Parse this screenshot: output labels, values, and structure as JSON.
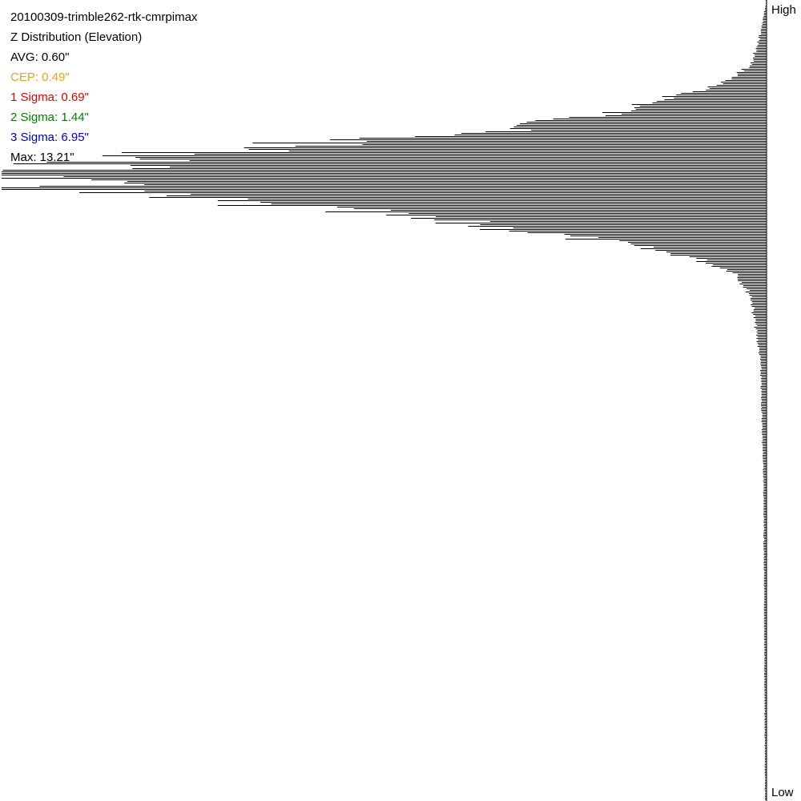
{
  "title": "20100309-trimble262-rtk-cmrpimax",
  "subtitle": "Z Distribution (Elevation)",
  "stats": [
    {
      "label": "AVG: 0.60\"",
      "color": "#000000"
    },
    {
      "label": "CEP: 0.49\"",
      "color": "#f0a020"
    },
    {
      "label": "1 Sigma: 0.69\"",
      "color": "#e00000"
    },
    {
      "label": "2 Sigma: 1.44\"",
      "color": "#008000"
    },
    {
      "label": "3 Sigma: 6.95\"",
      "color": "#0000c0"
    },
    {
      "label": "Max: 13.21\"",
      "color": "#000000"
    }
  ],
  "axis": {
    "top_label": "High",
    "bottom_label": "Low"
  },
  "chart_data": {
    "type": "bar",
    "orientation": "horizontal",
    "x_direction": "leftward from axis",
    "ylabel_top": "High",
    "ylabel_bottom": "Low",
    "bar_color": "#000000",
    "peak_fraction": 1.0,
    "profile": {
      "description_points": [
        {
          "pos": 0.05,
          "rel": 0.01
        },
        {
          "pos": 0.08,
          "rel": 0.02
        },
        {
          "pos": 0.1,
          "rel": 0.05
        },
        {
          "pos": 0.12,
          "rel": 0.12
        },
        {
          "pos": 0.14,
          "rel": 0.2
        },
        {
          "pos": 0.16,
          "rel": 0.33
        },
        {
          "pos": 0.18,
          "rel": 0.62
        },
        {
          "pos": 0.2,
          "rel": 0.85
        },
        {
          "pos": 0.22,
          "rel": 1.0
        },
        {
          "pos": 0.24,
          "rel": 0.9
        },
        {
          "pos": 0.26,
          "rel": 0.6
        },
        {
          "pos": 0.28,
          "rel": 0.38
        },
        {
          "pos": 0.3,
          "rel": 0.22
        },
        {
          "pos": 0.32,
          "rel": 0.1
        },
        {
          "pos": 0.34,
          "rel": 0.04
        },
        {
          "pos": 0.37,
          "rel": 0.02
        },
        {
          "pos": 0.45,
          "rel": 0.008
        },
        {
          "pos": 0.6,
          "rel": 0.004
        },
        {
          "pos": 0.8,
          "rel": 0.003
        },
        {
          "pos": 1.0,
          "rel": 0.002
        }
      ]
    }
  }
}
